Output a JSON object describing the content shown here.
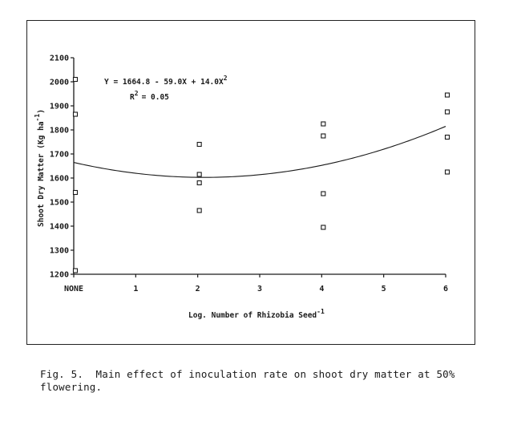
{
  "caption": {
    "line1": "Fig. 5.  Main effect of inoculation rate on shoot dry matter at 50%",
    "line2": "flowering."
  },
  "chart_data": {
    "type": "scatter",
    "xlabel": "Log. Number of Rhizobia Seed",
    "xlabel_superscript": "-1",
    "ylabel": "Shoot Dry Matter (Kg ha",
    "ylabel_superscript": "-1",
    "ylabel_suffix": ")",
    "x_ticks": [
      0,
      1,
      2,
      3,
      4,
      5,
      6
    ],
    "x_tick_labels": [
      "NONE",
      "1",
      "2",
      "3",
      "4",
      "5",
      "6"
    ],
    "y_ticks": [
      1200,
      1300,
      1400,
      1500,
      1600,
      1700,
      1800,
      1900,
      2000,
      2100
    ],
    "xlim": [
      0,
      6
    ],
    "ylim": [
      1200,
      2100
    ],
    "points": [
      {
        "x": 0,
        "y": 2010
      },
      {
        "x": 0,
        "y": 1865
      },
      {
        "x": 0,
        "y": 1540
      },
      {
        "x": 0,
        "y": 1215
      },
      {
        "x": 2,
        "y": 1740
      },
      {
        "x": 2,
        "y": 1615
      },
      {
        "x": 2,
        "y": 1580
      },
      {
        "x": 2,
        "y": 1465
      },
      {
        "x": 4,
        "y": 1825
      },
      {
        "x": 4,
        "y": 1775
      },
      {
        "x": 4,
        "y": 1535
      },
      {
        "x": 4,
        "y": 1395
      },
      {
        "x": 6,
        "y": 1945
      },
      {
        "x": 6,
        "y": 1875
      },
      {
        "x": 6,
        "y": 1770
      },
      {
        "x": 6,
        "y": 1625
      }
    ],
    "fit": {
      "type": "quadratic",
      "coefficients": [
        1664.8,
        -59.0,
        14.0
      ],
      "equation_text": "Y = 1664.8 - 59.0X + 14.0X",
      "equation_superscript": "2",
      "r2_text": "R",
      "r2_superscript": "2",
      "r2_value_text": "= 0.05"
    },
    "grid": false,
    "legend": "none"
  }
}
